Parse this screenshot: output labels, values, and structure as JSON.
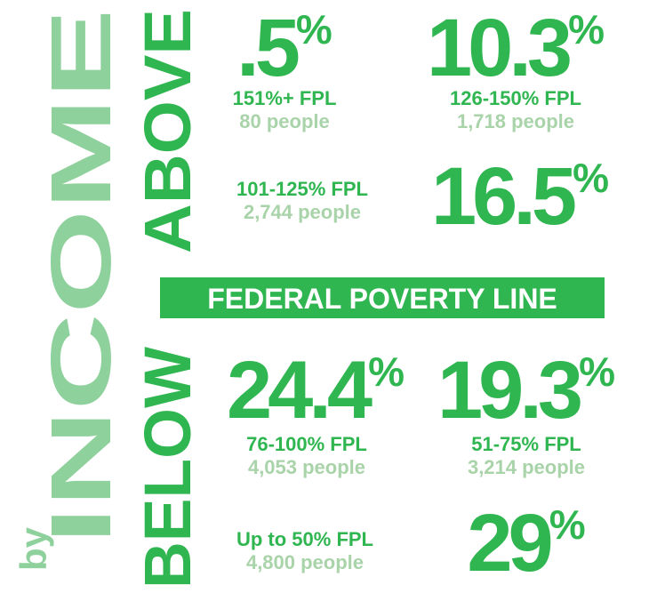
{
  "side": {
    "by": "by",
    "income": "INCOME",
    "above": "ABOVE",
    "below": "BELOW"
  },
  "banner": "FEDERAL POVERTY LINE",
  "items": [
    {
      "value": ".5",
      "unit": "%",
      "range": "151%+ FPL",
      "people": "80 people"
    },
    {
      "value": "10.3",
      "unit": "%",
      "range": "126-150% FPL",
      "people": "1,718 people"
    },
    {
      "value": "16.5",
      "unit": "%",
      "range": "101-125% FPL",
      "people": "2,744 people"
    },
    {
      "value": "24.4",
      "unit": "%",
      "range": "76-100% FPL",
      "people": "4,053 people"
    },
    {
      "value": "19.3",
      "unit": "%",
      "range": "51-75% FPL",
      "people": "3,214 people"
    },
    {
      "value": "29",
      "unit": "%",
      "range": "Up to 50% FPL",
      "people": "4,800 people"
    }
  ]
}
